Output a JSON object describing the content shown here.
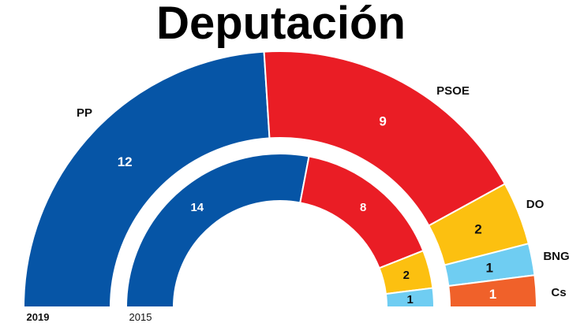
{
  "title": "Deputación",
  "chart_data": {
    "type": "pie",
    "subtype": "parliament-hemicycle",
    "rings": [
      {
        "year": "2019",
        "ring": "outer",
        "parties": [
          {
            "name": "PP",
            "seats": 12,
            "color": "#0655a6"
          },
          {
            "name": "PSOE",
            "seats": 9,
            "color": "#ea1d25"
          },
          {
            "name": "DO",
            "seats": 2,
            "color": "#fcc010"
          },
          {
            "name": "BNG",
            "seats": 1,
            "color": "#6fcdf2"
          },
          {
            "name": "Cs",
            "seats": 1,
            "color": "#f0612a"
          }
        ]
      },
      {
        "year": "2015",
        "ring": "inner",
        "parties": [
          {
            "name": "PP",
            "seats": 14,
            "color": "#0655a6"
          },
          {
            "name": "PSOE",
            "seats": 8,
            "color": "#ea1d25"
          },
          {
            "name": "DO",
            "seats": 2,
            "color": "#fcc010"
          },
          {
            "name": "BNG",
            "seats": 1,
            "color": "#6fcdf2"
          }
        ]
      }
    ]
  }
}
